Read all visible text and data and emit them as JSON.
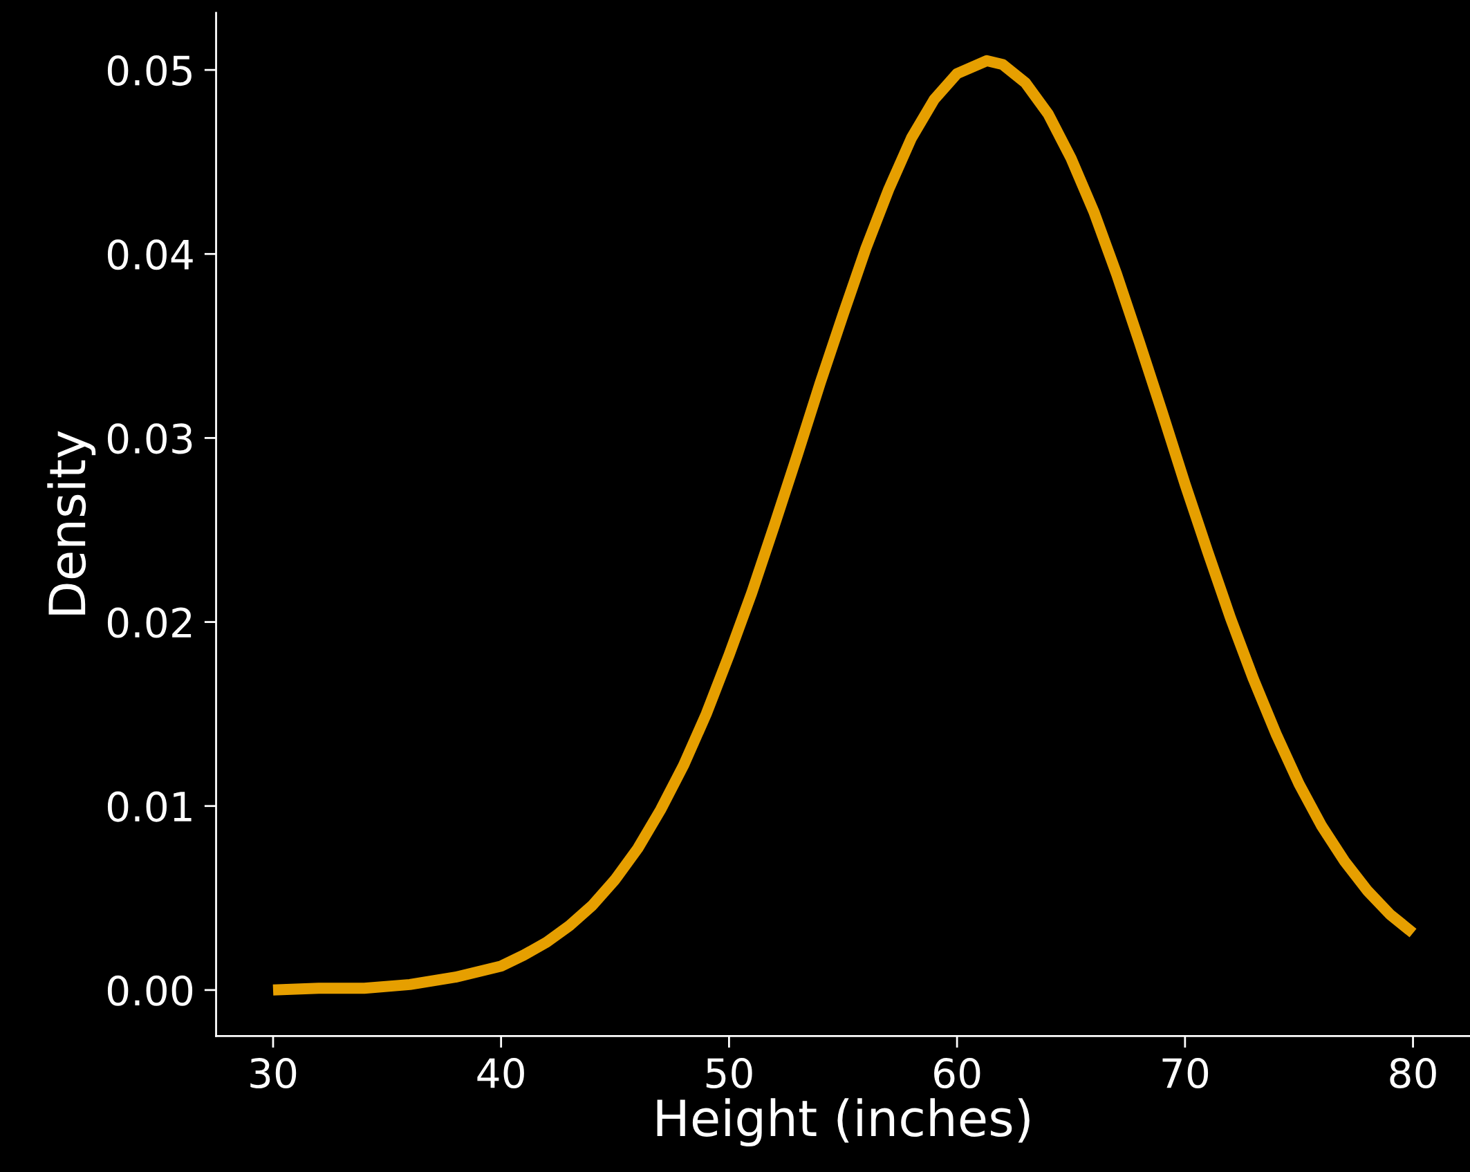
{
  "chart_data": {
    "type": "line",
    "xlabel": "Height (inches)",
    "ylabel": "Density",
    "x": [
      30,
      32,
      34,
      36,
      38,
      40,
      41,
      42,
      43,
      44,
      45,
      46,
      47,
      48,
      49,
      50,
      51,
      52,
      53,
      54,
      55,
      56,
      57,
      58,
      59,
      60,
      61.3,
      62,
      63,
      64,
      65,
      66,
      67,
      68,
      69,
      70,
      71,
      72,
      73,
      74,
      75,
      76,
      77,
      78,
      79,
      80
    ],
    "series": [
      {
        "color": "#e69f00",
        "values": [
          0.0,
          0.0001,
          0.0001,
          0.0003,
          0.0007,
          0.0013,
          0.0019,
          0.0026,
          0.0035,
          0.0046,
          0.006,
          0.0077,
          0.0098,
          0.0122,
          0.015,
          0.0182,
          0.0216,
          0.0253,
          0.0291,
          0.033,
          0.0367,
          0.0403,
          0.0435,
          0.0463,
          0.0484,
          0.0498,
          0.0505,
          0.0503,
          0.0493,
          0.0476,
          0.0452,
          0.0423,
          0.0389,
          0.0352,
          0.0314,
          0.0275,
          0.0238,
          0.0202,
          0.0169,
          0.0139,
          0.0112,
          0.0089,
          0.007,
          0.0054,
          0.0041,
          0.0031
        ]
      }
    ],
    "xlim": [
      27.5,
      82.5
    ],
    "ylim": [
      -0.0025,
      0.0531
    ],
    "xticks": [
      30,
      40,
      50,
      60,
      70,
      80
    ],
    "yticks": [
      {
        "value": 0,
        "label": "0.00"
      },
      {
        "value": 0.01,
        "label": "0.01"
      },
      {
        "value": 0.02,
        "label": "0.02"
      },
      {
        "value": 0.03,
        "label": "0.03"
      },
      {
        "value": 0.04,
        "label": "0.04"
      },
      {
        "value": 0.05,
        "label": "0.05"
      }
    ],
    "grid": false,
    "marker": "none",
    "line_style": "solid"
  }
}
